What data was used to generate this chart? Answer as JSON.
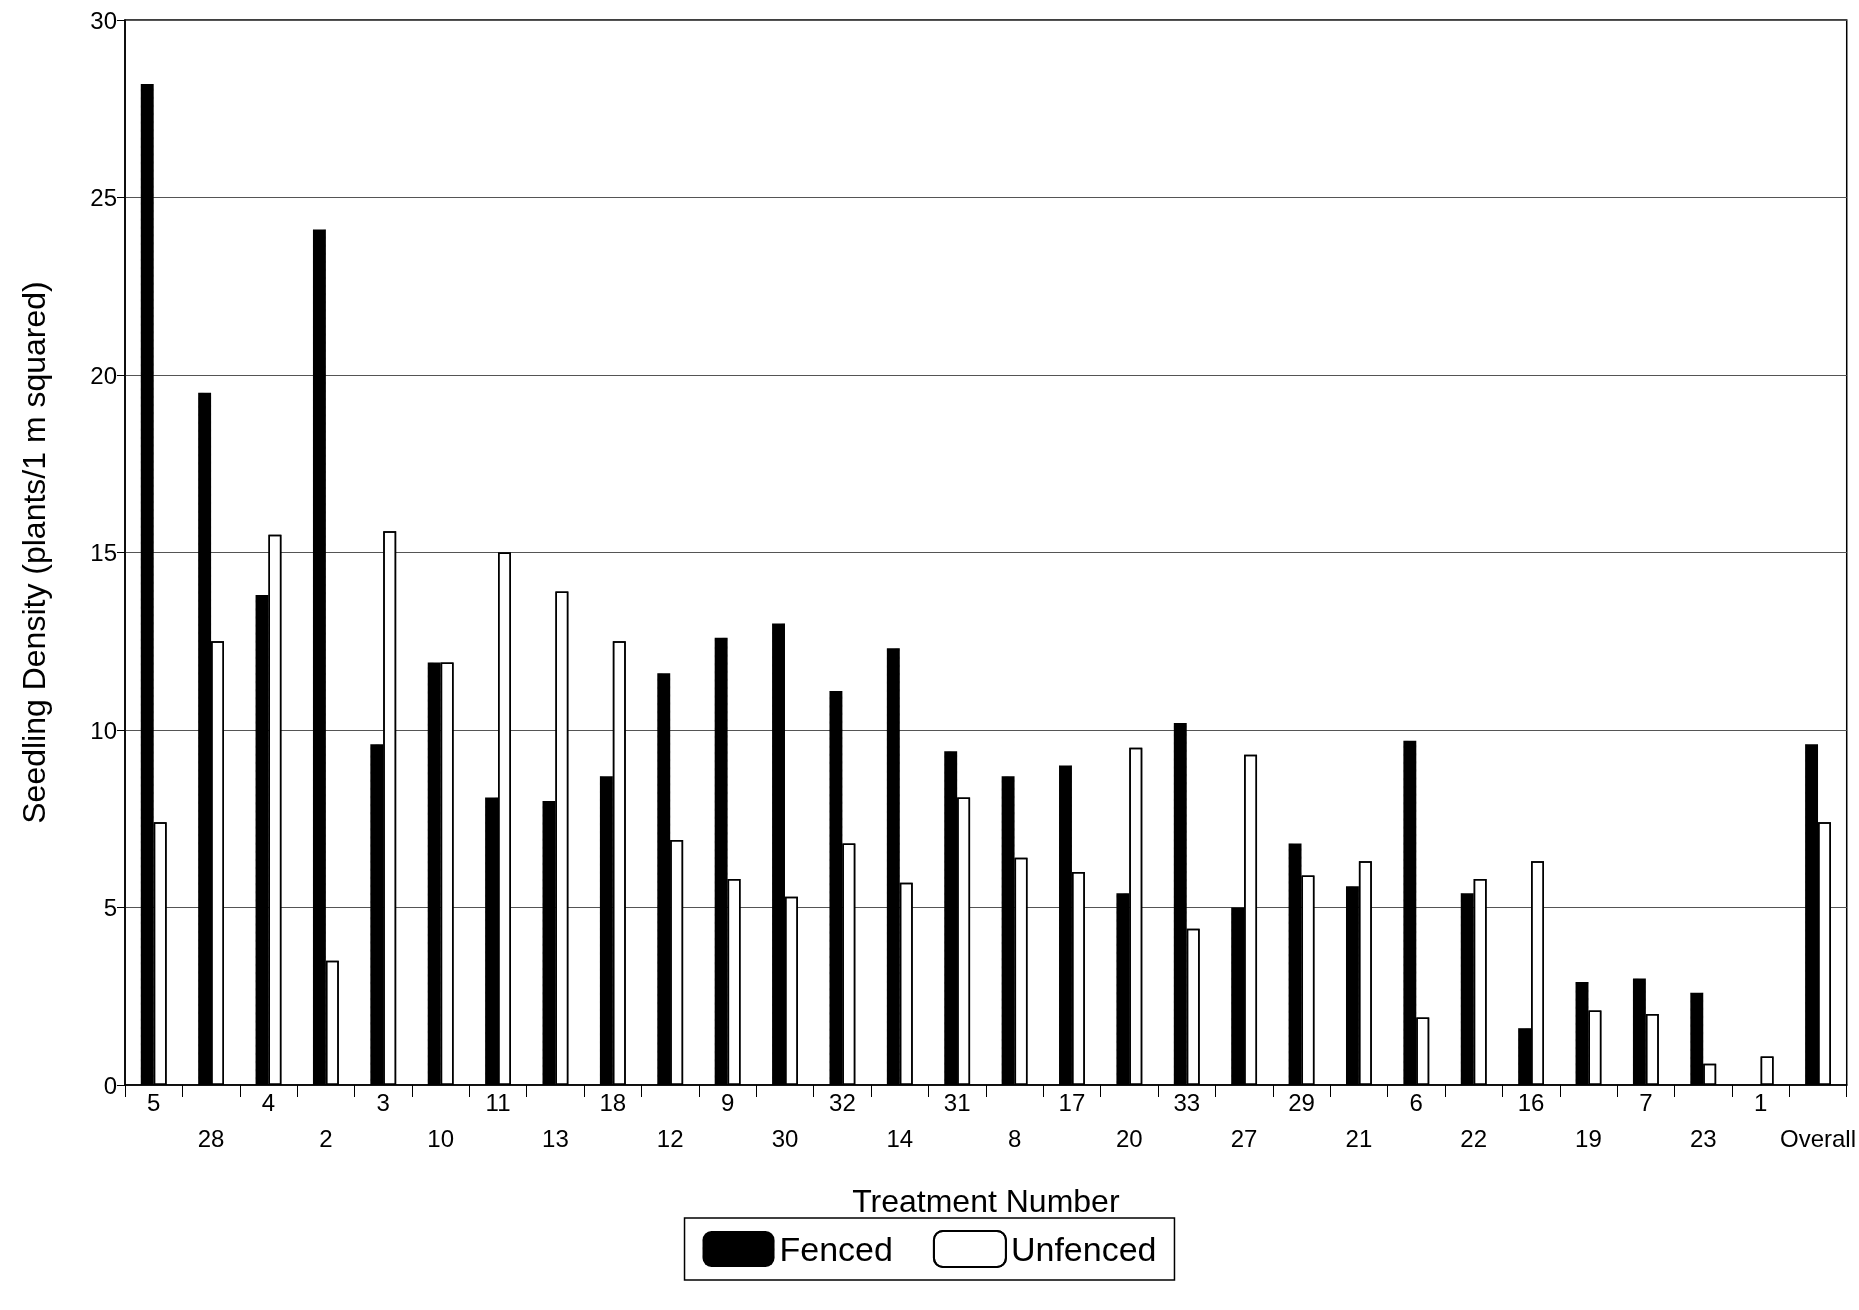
{
  "chart_data": {
    "type": "bar",
    "xlabel": "Treatment Number",
    "ylabel": "Seedling Density (plants/1 m squared)",
    "categories": [
      "5",
      "28",
      "4",
      "2",
      "3",
      "10",
      "11",
      "13",
      "18",
      "12",
      "9",
      "30",
      "32",
      "14",
      "31",
      "8",
      "17",
      "20",
      "33",
      "27",
      "29",
      "21",
      "6",
      "22",
      "16",
      "19",
      "7",
      "23",
      "1",
      "Overall"
    ],
    "series": [
      {
        "name": "Fenced",
        "color": "#000000",
        "values": [
          28.2,
          19.5,
          13.8,
          24.1,
          9.6,
          11.9,
          8.1,
          8.0,
          8.7,
          11.6,
          12.6,
          13.0,
          11.1,
          12.3,
          9.4,
          8.7,
          9.0,
          5.4,
          10.2,
          5.0,
          6.8,
          5.6,
          9.7,
          5.4,
          1.6,
          2.9,
          3.0,
          2.6,
          0,
          9.6
        ]
      },
      {
        "name": "Unfenced",
        "color": "#ffffff",
        "values": [
          7.4,
          12.5,
          15.5,
          3.5,
          15.6,
          11.9,
          15.0,
          13.9,
          12.5,
          6.9,
          5.8,
          5.3,
          6.8,
          5.7,
          8.1,
          6.4,
          6.0,
          9.5,
          4.4,
          9.3,
          5.9,
          6.3,
          1.9,
          5.8,
          6.3,
          2.1,
          2.0,
          0.6,
          0.8,
          7.4
        ]
      }
    ],
    "ylim": [
      0,
      30
    ],
    "yticks": [
      0,
      5,
      10,
      15,
      20,
      25,
      30
    ],
    "grid": "y",
    "legend": "bottom"
  }
}
